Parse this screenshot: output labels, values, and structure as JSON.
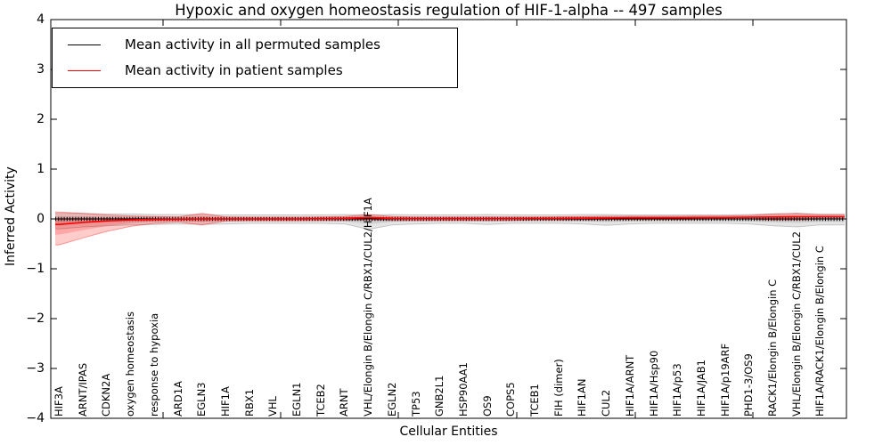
{
  "chart_data": {
    "type": "line",
    "title": "Hypoxic and oxygen homeostasis regulation of HIF-1-alpha -- 497 samples",
    "xlabel": "Cellular Entities",
    "ylabel": "Inferred Activity",
    "ylim": [
      -4,
      4
    ],
    "yticks": [
      "−4",
      "−3",
      "−2",
      "−1",
      "0",
      "1",
      "2",
      "3",
      "4"
    ],
    "ytick_values": [
      -4,
      -3,
      -2,
      -1,
      0,
      1,
      2,
      3,
      4
    ],
    "grid": false,
    "legend": {
      "position": "upper left",
      "entries": [
        {
          "label": "Mean activity in all permuted samples",
          "color": "#000000"
        },
        {
          "label": "Mean activity in patient samples",
          "color": "#ff0000"
        }
      ]
    },
    "categories": [
      "HIF3A",
      "ARNT/IPAS",
      "CDKN2A",
      "oxygen homeostasis",
      "response to hypoxia",
      "ARD1A",
      "EGLN3",
      "HIF1A",
      "RBX1",
      "VHL",
      "EGLN1",
      "TCEB2",
      "ARNT",
      "VHL/Elongin B/Elongin C/RBX1/CUL2/HIF1A",
      "EGLN2",
      "TP53",
      "GNB2L1",
      "HSP90AA1",
      "OS9",
      "COPS5",
      "TCEB1",
      "FIH (dimer)",
      "HIF1AN",
      "CUL2",
      "HIF1A/ARNT",
      "HIF1A/Hsp90",
      "HIF1A/p53",
      "HIF1A/JAB1",
      "HIF1A/p19ARF",
      "PHD1-3/OS9",
      "RACK1/Elongin B/Elongin C",
      "VHL/Elongin B/Elongin C/RBX1/CUL2",
      "HIF1A/RACK1/Elongin B/Elongin C"
    ],
    "series": [
      {
        "name": "Mean activity in all permuted samples",
        "color": "#000000",
        "values": [
          0,
          0,
          0,
          0,
          0,
          0,
          0,
          0,
          0,
          0,
          0,
          0,
          0,
          0,
          0,
          0,
          0,
          0,
          0,
          0,
          0,
          0,
          0,
          0,
          0,
          0,
          0,
          0,
          0,
          0,
          0,
          0,
          0
        ]
      },
      {
        "name": "Mean activity in patient samples",
        "color": "#ff0000",
        "values": [
          -0.11,
          -0.07,
          -0.04,
          -0.02,
          -0.01,
          -0.005,
          0,
          0,
          0,
          0,
          0,
          0.005,
          0.01,
          0.03,
          0.01,
          0.005,
          0.005,
          0.005,
          0.005,
          0.005,
          0.01,
          0.01,
          0.015,
          0.02,
          0.025,
          0.025,
          0.025,
          0.03,
          0.03,
          0.035,
          0.04,
          0.045,
          0.045
        ]
      }
    ],
    "bands": [
      {
        "name": "permuted samples activity range",
        "color": "#000000",
        "opacity": 0.1,
        "upper": [
          0.11,
          0.11,
          0.1,
          0.1,
          0.09,
          0.09,
          0.09,
          0.08,
          0.08,
          0.08,
          0.08,
          0.08,
          0.09,
          0.08,
          0.09,
          0.08,
          0.08,
          0.08,
          0.09,
          0.08,
          0.08,
          0.08,
          0.09,
          0.09,
          0.08,
          0.08,
          0.08,
          0.08,
          0.08,
          0.09,
          0.1,
          0.11,
          0.1
        ],
        "lower": [
          -0.2,
          -0.16,
          -0.14,
          -0.12,
          -0.11,
          -0.1,
          -0.11,
          -0.1,
          -0.09,
          -0.09,
          -0.09,
          -0.09,
          -0.1,
          -0.21,
          -0.12,
          -0.1,
          -0.09,
          -0.09,
          -0.11,
          -0.09,
          -0.09,
          -0.09,
          -0.1,
          -0.13,
          -0.1,
          -0.09,
          -0.09,
          -0.09,
          -0.09,
          -0.1,
          -0.14,
          -0.16,
          -0.12
        ]
      },
      {
        "name": "patient samples activity range",
        "color": "#ff0000",
        "opacity": 0.2,
        "upper": [
          0.14,
          0.11,
          0.08,
          0.06,
          0.05,
          0.04,
          0.11,
          0.04,
          0.035,
          0.035,
          0.035,
          0.04,
          0.05,
          0.09,
          0.05,
          0.04,
          0.04,
          0.04,
          0.04,
          0.04,
          0.04,
          0.045,
          0.05,
          0.055,
          0.055,
          0.055,
          0.055,
          0.06,
          0.06,
          0.07,
          0.1,
          0.11,
          0.08
        ],
        "lower": [
          -0.52,
          -0.38,
          -0.25,
          -0.15,
          -0.09,
          -0.06,
          -0.12,
          -0.04,
          -0.035,
          -0.035,
          -0.035,
          -0.03,
          -0.03,
          -0.02,
          -0.03,
          -0.03,
          -0.03,
          -0.03,
          -0.03,
          -0.03,
          -0.02,
          -0.02,
          -0.02,
          -0.015,
          -0.01,
          -0.01,
          -0.01,
          -0.005,
          0,
          0,
          -0.02,
          -0.02,
          0
        ]
      }
    ]
  }
}
